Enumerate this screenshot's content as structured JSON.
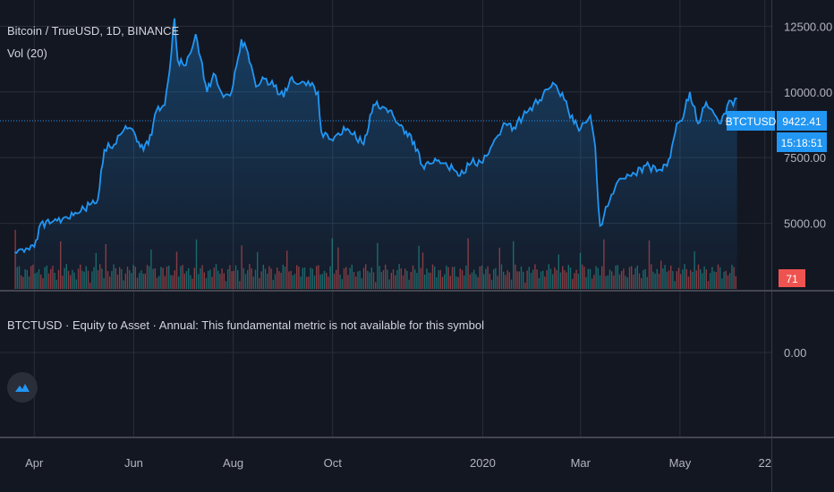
{
  "header": {
    "symbol_line": "Bitcoin / TrueUSD, 1D, BINANCE",
    "volume_line": "Vol (20)",
    "indicator_line": "BTCTUSD · Equity to Asset · Annual: This fundamental metric is not available for this symbol"
  },
  "price_scale": {
    "ticks": [
      "12500.00",
      "10000.00",
      "7500.00",
      "5000.00"
    ],
    "last_price": "9422.41",
    "symbol_badge": "BTCTUSD",
    "countdown": "15:18:51",
    "volume_badge": "71"
  },
  "indicator_scale": {
    "ticks": [
      "0.00"
    ]
  },
  "time_axis": {
    "labels": [
      "Apr",
      "Jun",
      "Aug",
      "Oct",
      "2020",
      "Mar",
      "May",
      "22"
    ]
  },
  "colors": {
    "line": "#2196f3",
    "background": "#131722",
    "grid": "#2a2e39",
    "vol_up": "#26a69a",
    "vol_down": "#ef5350"
  },
  "icons": {
    "logo": "tradingview-cloud-icon"
  },
  "chart_data": {
    "type": "area",
    "y_range": [
      2500,
      13500
    ],
    "x_range": [
      "2019-03-11",
      "2020-06-26"
    ],
    "series": [
      {
        "x": [
          "2019-03-20",
          "2019-03-27",
          "2019-04-01",
          "2019-04-05",
          "2019-04-15",
          "2019-04-25",
          "2019-05-05",
          "2019-05-10",
          "2019-05-14",
          "2019-05-20",
          "2019-05-27",
          "2019-06-01",
          "2019-06-05",
          "2019-06-10",
          "2019-06-15",
          "2019-06-20",
          "2019-06-23",
          "2019-06-26",
          "2019-06-28",
          "2019-07-02",
          "2019-07-06",
          "2019-07-09",
          "2019-07-12",
          "2019-07-16",
          "2019-07-20",
          "2019-07-26",
          "2019-07-31",
          "2019-08-04",
          "2019-08-06",
          "2019-08-10",
          "2019-08-15",
          "2019-08-20",
          "2019-08-26",
          "2019-09-01",
          "2019-09-05",
          "2019-09-10",
          "2019-09-16",
          "2019-09-22",
          "2019-09-24",
          "2019-09-30",
          "2019-10-10",
          "2019-10-20",
          "2019-10-25",
          "2019-10-27",
          "2019-11-05",
          "2019-11-10",
          "2019-11-15",
          "2019-11-20",
          "2019-11-25",
          "2019-12-05",
          "2019-12-15",
          "2019-12-18",
          "2019-12-25",
          "2020-01-01",
          "2020-01-07",
          "2020-01-15",
          "2020-01-20",
          "2020-01-30",
          "2020-02-05",
          "2020-02-09",
          "2020-02-14",
          "2020-02-20",
          "2020-02-26",
          "2020-03-01",
          "2020-03-07",
          "2020-03-10",
          "2020-03-12",
          "2020-03-13",
          "2020-03-20",
          "2020-03-25",
          "2020-04-01",
          "2020-04-10",
          "2020-04-20",
          "2020-04-25",
          "2020-04-29",
          "2020-05-02",
          "2020-05-07",
          "2020-05-12",
          "2020-05-17",
          "2020-05-22",
          "2020-05-26",
          "2020-05-30",
          "2020-06-05"
        ],
        "y": [
          3900,
          4050,
          4100,
          5000,
          5100,
          5300,
          5700,
          5900,
          7800,
          8000,
          8700,
          8500,
          7900,
          8000,
          9300,
          9500,
          10800,
          12800,
          11200,
          11000,
          11500,
          12200,
          11300,
          10000,
          10700,
          9800,
          10000,
          11300,
          12000,
          11500,
          10200,
          10500,
          10200,
          9800,
          10500,
          10300,
          10400,
          10000,
          8500,
          8200,
          8600,
          8000,
          9200,
          9500,
          9300,
          8800,
          8500,
          8100,
          7200,
          7400,
          7000,
          6800,
          7300,
          7300,
          8000,
          8800,
          8650,
          9400,
          9700,
          10100,
          10300,
          9700,
          8800,
          8600,
          9100,
          7900,
          5600,
          4900,
          6100,
          6700,
          6800,
          7200,
          7000,
          7500,
          8800,
          8900,
          10000,
          8800,
          9600,
          9150,
          8800,
          9500,
          9750
        ]
      }
    ],
    "volume_series": {
      "name": "Vol (20)",
      "last": 71
    }
  }
}
